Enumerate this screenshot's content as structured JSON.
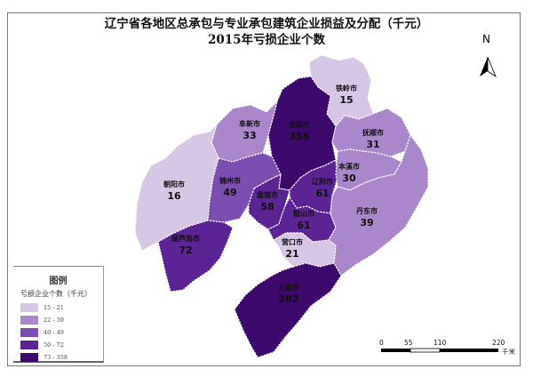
{
  "title_line1": "辽宁省各地区总承包与专业承包建筑企业损益及分配（千元）",
  "title_line2": "2015年亏损企业个数",
  "north_label": "N",
  "legend": {
    "title": "图例",
    "subtitle": "亏损企业个数（千元）",
    "classes": [
      {
        "label": "15  -  21",
        "color": "#d6c7e4"
      },
      {
        "label": "22  -  39",
        "color": "#a888cb"
      },
      {
        "label": "40  -  49",
        "color": "#7b4fb2"
      },
      {
        "label": "50  -  72",
        "color": "#5a2494"
      },
      {
        "label": "73  -  358",
        "color": "#3c0a6c"
      }
    ]
  },
  "regions": [
    {
      "name": "铁岭市",
      "value": "15",
      "class": 0
    },
    {
      "name": "沈阳市",
      "value": "358",
      "class": 4
    },
    {
      "name": "阜新市",
      "value": "33",
      "class": 1
    },
    {
      "name": "抚顺市",
      "value": "31",
      "class": 1
    },
    {
      "name": "朝阳市",
      "value": "16",
      "class": 0
    },
    {
      "name": "锦州市",
      "value": "49",
      "class": 2
    },
    {
      "name": "盘锦市",
      "value": "58",
      "class": 3
    },
    {
      "name": "辽阳市",
      "value": "61",
      "class": 3
    },
    {
      "name": "本溪市",
      "value": "30",
      "class": 1
    },
    {
      "name": "鞍山市",
      "value": "61",
      "class": 3
    },
    {
      "name": "丹东市",
      "value": "39",
      "class": 1
    },
    {
      "name": "葫芦岛市",
      "value": "72",
      "class": 3
    },
    {
      "name": "营口市",
      "value": "21",
      "class": 0
    },
    {
      "name": "大连市",
      "value": "282",
      "class": 4
    }
  ],
  "scale_bar": {
    "ticks": [
      "0",
      "55",
      "110",
      "220"
    ],
    "unit": "千米"
  }
}
